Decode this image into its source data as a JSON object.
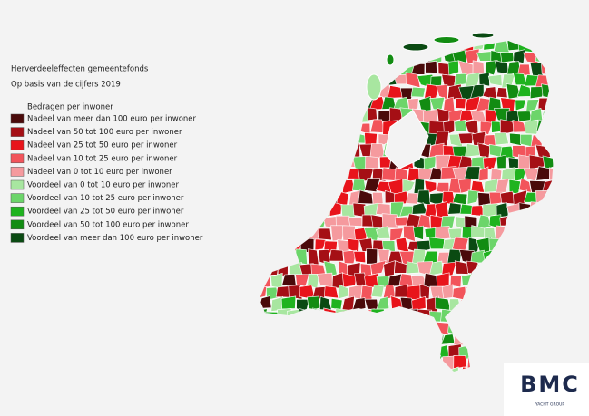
{
  "header": {
    "title": "Herverdeeleffecten gemeentefonds",
    "subtitle": "Op basis van de cijfers 2019"
  },
  "legend": {
    "title": "Bedragen per inwoner",
    "items": [
      {
        "label": "Nadeel van meer dan 100 euro per inwoner",
        "color": "#4a0a0a"
      },
      {
        "label": "Nadeel van 50 tot 100 euro per inwoner",
        "color": "#a50f15"
      },
      {
        "label": "Nadeel van 25 tot 50 euro per inwoner",
        "color": "#e8141b"
      },
      {
        "label": "Nadeel van 10 tot 25 euro per inwoner",
        "color": "#f2545b"
      },
      {
        "label": "Nadeel van 0 tot 10 euro per inwoner",
        "color": "#f59a9e"
      },
      {
        "label": "Voordeel van 0 tot 10 euro per inwoner",
        "color": "#a8e6a0"
      },
      {
        "label": "Voordeel van 10 tot 25 euro per inwoner",
        "color": "#6cd56a"
      },
      {
        "label": "Voordeel van 25 tot 50 euro per inwoner",
        "color": "#1fb31f"
      },
      {
        "label": "Voordeel van 50 tot 100 euro per inwoner",
        "color": "#128c12"
      },
      {
        "label": "Voordeel van meer dan 100 euro per inwoner",
        "color": "#0a4a12"
      }
    ]
  },
  "logo": {
    "name": "BMC",
    "tagline": "YACHT GROUP"
  }
}
